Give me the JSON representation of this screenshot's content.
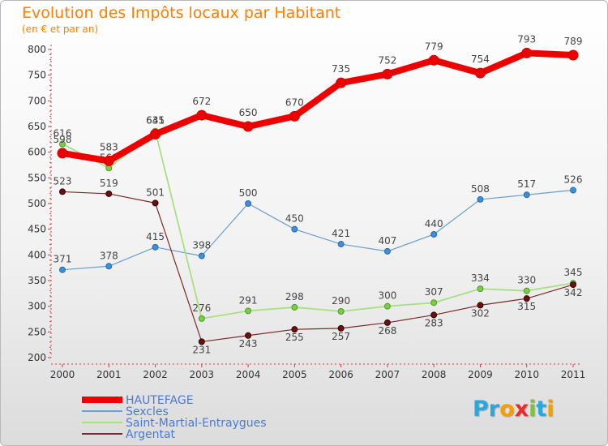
{
  "header": {
    "title": "Evolution des Impôts locaux par Habitant",
    "subtitle": "(en € et par an)"
  },
  "logo": {
    "text": "Proxiti",
    "letters": [
      "P",
      "r",
      "o",
      "x",
      "i",
      "t",
      "i"
    ],
    "colors": [
      "#2aa7de",
      "#2aa7de",
      "#f5a000",
      "#e82b2b",
      "#7cc242",
      "#2aa7de",
      "#f5a000"
    ]
  },
  "chart_data": {
    "type": "line",
    "title": "Evolution des Impôts locaux par Habitant",
    "subtitle": "(en € et par an)",
    "xlabel": "",
    "ylabel": "",
    "x": [
      "2000",
      "2001",
      "2002",
      "2003",
      "2004",
      "2005",
      "2006",
      "2007",
      "2008",
      "2009",
      "2010",
      "2011"
    ],
    "ylim": [
      200,
      800
    ],
    "yticks": [
      200,
      250,
      300,
      350,
      400,
      450,
      500,
      550,
      600,
      650,
      700,
      750,
      800
    ],
    "grid": false,
    "legend_position": "bottom-left",
    "series": [
      {
        "name": "HAUTEFAGE",
        "color": "#ee0000",
        "values": [
          598,
          583,
          635,
          672,
          650,
          670,
          735,
          752,
          779,
          754,
          793,
          789
        ]
      },
      {
        "name": "Sexcles",
        "color": "#6a9fd0",
        "values": [
          371,
          378,
          415,
          398,
          500,
          450,
          421,
          407,
          440,
          508,
          517,
          526
        ]
      },
      {
        "name": "Saint-Martial-Entraygues",
        "color": "#a8e080",
        "values": [
          616,
          569,
          641,
          276,
          291,
          298,
          290,
          300,
          307,
          334,
          330,
          345
        ]
      },
      {
        "name": "Argentat",
        "color": "#7a2a2a",
        "values": [
          523,
          519,
          501,
          231,
          243,
          255,
          257,
          268,
          283,
          302,
          315,
          342
        ]
      }
    ]
  }
}
